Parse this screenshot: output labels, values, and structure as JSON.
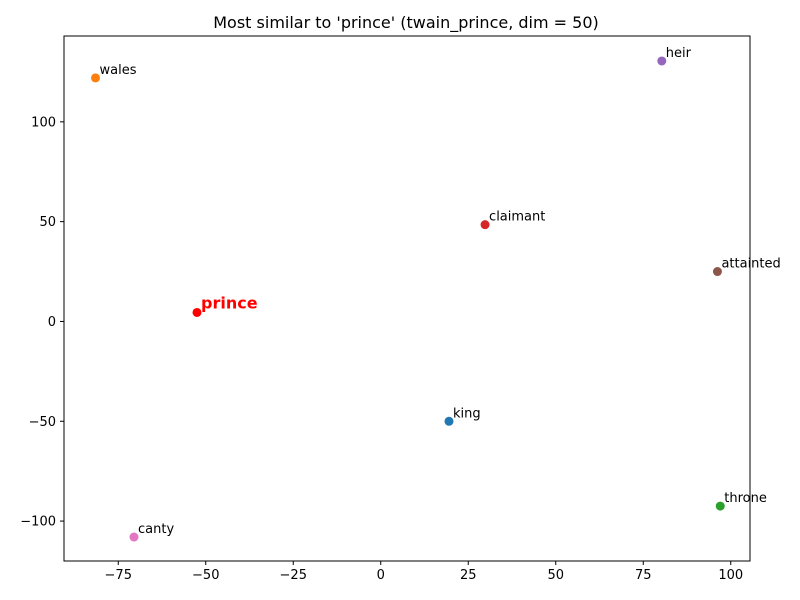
{
  "chart_data": {
    "type": "scatter",
    "title": "Most similar to 'prince' (twain_prince, dim = 50)",
    "xlabel": "",
    "ylabel": "",
    "xlim": [
      -90.5,
      105.5
    ],
    "ylim": [
      -120,
      143
    ],
    "xticks": [
      -75,
      -50,
      -25,
      0,
      25,
      50,
      75,
      100
    ],
    "yticks": [
      -100,
      -50,
      0,
      50,
      100
    ],
    "grid": false,
    "points": [
      {
        "label": "king",
        "x": 19.5,
        "y": -50,
        "color": "#1f77b4",
        "highlight": false
      },
      {
        "label": "wales",
        "x": -81.5,
        "y": 122,
        "color": "#ff7f0e",
        "highlight": false
      },
      {
        "label": "throne",
        "x": 97,
        "y": -92.5,
        "color": "#2ca02c",
        "highlight": false
      },
      {
        "label": "claimant",
        "x": 29.8,
        "y": 48.5,
        "color": "#d62728",
        "highlight": false
      },
      {
        "label": "heir",
        "x": 80.3,
        "y": 130.5,
        "color": "#9467bd",
        "highlight": false
      },
      {
        "label": "attainted",
        "x": 96.2,
        "y": 25,
        "color": "#8c564b",
        "highlight": false
      },
      {
        "label": "canty",
        "x": -70.5,
        "y": -108,
        "color": "#e377c2",
        "highlight": false
      },
      {
        "label": "prince",
        "x": -52.5,
        "y": 4.5,
        "color": "#ff0000",
        "highlight": true
      }
    ]
  }
}
